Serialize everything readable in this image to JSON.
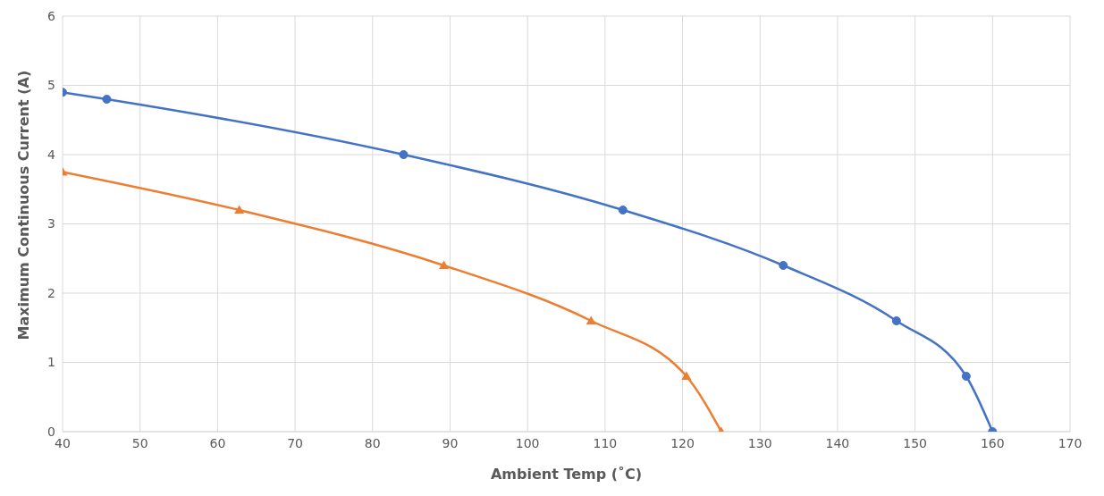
{
  "chart_data": {
    "type": "line",
    "xlabel": "Ambient Temp (˚C)",
    "ylabel": "Maximum Continuous Current (A)",
    "xlim": [
      40,
      170
    ],
    "xticks": [
      40,
      50,
      60,
      70,
      80,
      90,
      100,
      110,
      120,
      130,
      140,
      150,
      160,
      170
    ],
    "ylim": [
      0,
      6
    ],
    "yticks": [
      0,
      1,
      2,
      3,
      4,
      5,
      6
    ],
    "grid": true,
    "series": [
      {
        "color": "#4472c4",
        "marker": "circle",
        "x": [
          40,
          45.7,
          84,
          112.3,
          133,
          147.6,
          156.6,
          160
        ],
        "values": [
          4.9,
          4.8,
          4.0,
          3.2,
          2.4,
          1.6,
          0.8,
          0
        ]
      },
      {
        "color": "#ed7d31",
        "marker": "triangle",
        "x": [
          40,
          62.8,
          89.2,
          108.2,
          120.5,
          125
        ],
        "values": [
          3.75,
          3.2,
          2.4,
          1.6,
          0.8,
          0
        ]
      }
    ]
  }
}
